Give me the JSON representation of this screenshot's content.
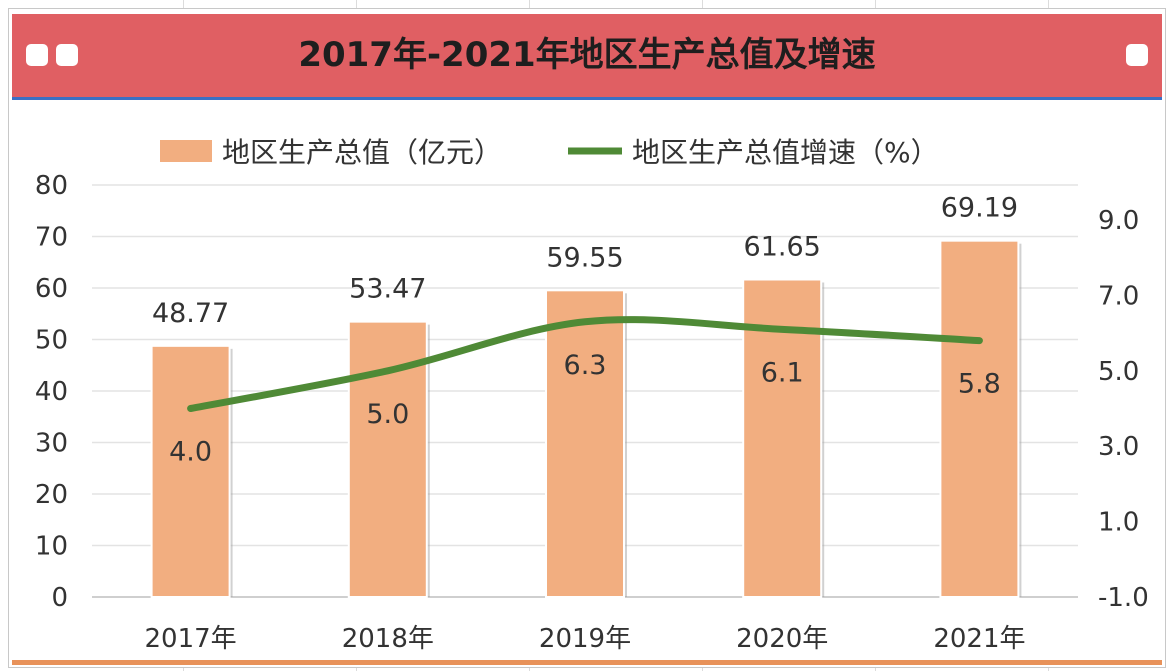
{
  "page": {
    "title": "2017年-2021年地区生产总值及增速",
    "accent_color": "#e05f63",
    "header_icons": [
      "square-dot-icon",
      "square-dot-icon",
      "square-dot-icon"
    ]
  },
  "chart_data": {
    "type": "bar",
    "title": "2017年-2021年地区生产总值及增速",
    "categories": [
      "2017年",
      "2018年",
      "2019年",
      "2020年",
      "2021年"
    ],
    "series": [
      {
        "name": "地区生产总值（亿元）",
        "type": "bar",
        "axis": "left",
        "values": [
          48.77,
          53.47,
          59.55,
          61.65,
          69.19
        ],
        "labels": [
          "48.77",
          "53.47",
          "59.55",
          "61.65",
          "69.19"
        ],
        "color": "#f2ae80"
      },
      {
        "name": "地区生产总值增速（%）",
        "type": "line",
        "axis": "right",
        "values": [
          4.0,
          5.0,
          6.3,
          6.1,
          5.8
        ],
        "labels": [
          "4.0",
          "5.0",
          "6.3",
          "6.1",
          "5.8"
        ],
        "color": "#4f8a36"
      }
    ],
    "y_left": {
      "min": 0,
      "max": 80,
      "ticks": [
        0,
        10,
        20,
        30,
        40,
        50,
        60,
        70,
        80
      ],
      "tick_labels": [
        "0",
        "10",
        "20",
        "30",
        "40",
        "50",
        "60",
        "70",
        "80"
      ]
    },
    "y_right": {
      "min": -1.0,
      "max": 9.0,
      "ticks": [
        -1.0,
        1.0,
        3.0,
        5.0,
        7.0,
        9.0
      ],
      "tick_labels": [
        "-1.0",
        "1.0",
        "3.0",
        "5.0",
        "7.0",
        "9.0"
      ]
    },
    "legend_position": "top",
    "grid": true
  }
}
